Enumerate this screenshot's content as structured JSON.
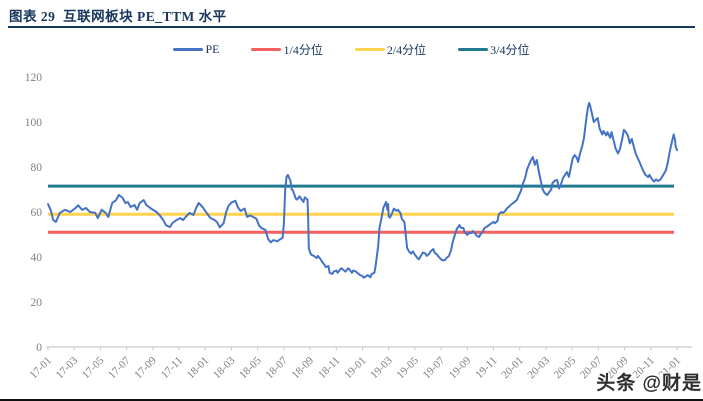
{
  "header": {
    "title": "图表 29  互联网板块 PE_TTM 水平"
  },
  "watermark": "头条 @财是",
  "chart_data": {
    "type": "line",
    "title": "图表 29 互联网板块 PE_TTM 水平",
    "xlabel": "",
    "ylabel": "",
    "ylim": [
      0,
      120
    ],
    "y_ticks": [
      0,
      20,
      40,
      60,
      80,
      100,
      120
    ],
    "x_ticks": [
      "17-01",
      "17-03",
      "17-05",
      "17-07",
      "17-09",
      "17-11",
      "18-01",
      "18-03",
      "18-05",
      "18-07",
      "18-09",
      "18-11",
      "19-01",
      "19-03",
      "19-05",
      "19-07",
      "19-09",
      "19-11",
      "20-01",
      "20-03",
      "20-05",
      "20-07",
      "20-09",
      "20-11",
      "21-01"
    ],
    "x_months_span": 48,
    "grid": "off",
    "legend_position": "top",
    "legend": [
      {
        "name": "PE",
        "color": "#4472C4"
      },
      {
        "name": "1/4分位",
        "color": "#F45F5F"
      },
      {
        "name": "2/4分位",
        "color": "#FFD34F"
      },
      {
        "name": "3/4分位",
        "color": "#20798F"
      }
    ],
    "quartile_values": {
      "q1": 51,
      "q2": 59,
      "q3": 71.5
    },
    "pe_points": [
      [
        0,
        63.5
      ],
      [
        0.2,
        61
      ],
      [
        0.4,
        56.5
      ],
      [
        0.6,
        55.6
      ],
      [
        0.9,
        59.6
      ],
      [
        1.3,
        61
      ],
      [
        1.7,
        60
      ],
      [
        2.1,
        61.8
      ],
      [
        2.3,
        63
      ],
      [
        2.6,
        61
      ],
      [
        2.9,
        61.8
      ],
      [
        3.2,
        60
      ],
      [
        3.6,
        59.6
      ],
      [
        3.8,
        57.3
      ],
      [
        4.1,
        61
      ],
      [
        4.4,
        59.6
      ],
      [
        4.6,
        57.8
      ],
      [
        4.9,
        64
      ],
      [
        5.2,
        65.3
      ],
      [
        5.4,
        67.6
      ],
      [
        5.7,
        66.2
      ],
      [
        5.9,
        64
      ],
      [
        6.1,
        64.4
      ],
      [
        6.3,
        62.2
      ],
      [
        6.6,
        63.1
      ],
      [
        6.8,
        61
      ],
      [
        7.0,
        64
      ],
      [
        7.3,
        65.3
      ],
      [
        7.5,
        63.1
      ],
      [
        7.8,
        61.8
      ],
      [
        8.0,
        61
      ],
      [
        8.2,
        60.4
      ],
      [
        8.5,
        58.7
      ],
      [
        8.8,
        56.4
      ],
      [
        9.0,
        54.2
      ],
      [
        9.3,
        53.3
      ],
      [
        9.5,
        55.1
      ],
      [
        9.8,
        56.4
      ],
      [
        10.1,
        57.3
      ],
      [
        10.3,
        56.4
      ],
      [
        10.5,
        57.8
      ],
      [
        10.8,
        59.6
      ],
      [
        11.1,
        58.7
      ],
      [
        11.3,
        61.8
      ],
      [
        11.5,
        64
      ],
      [
        11.8,
        62.2
      ],
      [
        12.1,
        59.6
      ],
      [
        12.4,
        57.3
      ],
      [
        12.7,
        56.5
      ],
      [
        12.9,
        55.5
      ],
      [
        13.1,
        53.2
      ],
      [
        13.4,
        55
      ],
      [
        13.6,
        60
      ],
      [
        13.8,
        63
      ],
      [
        14.0,
        64.2
      ],
      [
        14.3,
        65
      ],
      [
        14.5,
        62
      ],
      [
        14.7,
        60.5
      ],
      [
        15.0,
        61.5
      ],
      [
        15.2,
        57.8
      ],
      [
        15.4,
        58.5
      ],
      [
        15.6,
        58
      ],
      [
        15.9,
        57
      ],
      [
        16.1,
        54
      ],
      [
        16.3,
        52.8
      ],
      [
        16.6,
        52
      ],
      [
        16.8,
        48
      ],
      [
        17.0,
        46.5
      ],
      [
        17.2,
        47.5
      ],
      [
        17.5,
        47
      ],
      [
        17.7,
        47.8
      ],
      [
        17.9,
        48.5
      ],
      [
        18.0,
        55
      ],
      [
        18.1,
        70
      ],
      [
        18.2,
        75.5
      ],
      [
        18.3,
        76.5
      ],
      [
        18.5,
        74
      ],
      [
        18.6,
        70
      ],
      [
        18.7,
        69.5
      ],
      [
        18.9,
        66
      ],
      [
        19.0,
        65.5
      ],
      [
        19.2,
        67
      ],
      [
        19.3,
        66
      ],
      [
        19.5,
        64.5
      ],
      [
        19.6,
        66.5
      ],
      [
        19.8,
        65.5
      ],
      [
        19.85,
        58
      ],
      [
        19.9,
        44
      ],
      [
        20.0,
        42
      ],
      [
        20.1,
        41
      ],
      [
        20.3,
        40.5
      ],
      [
        20.5,
        39.5
      ],
      [
        20.6,
        40.5
      ],
      [
        20.8,
        39
      ],
      [
        20.9,
        38
      ],
      [
        21.1,
        36.5
      ],
      [
        21.2,
        35.5
      ],
      [
        21.4,
        36
      ],
      [
        21.5,
        33
      ],
      [
        21.7,
        32.5
      ],
      [
        21.8,
        33.5
      ],
      [
        22.0,
        34
      ],
      [
        22.1,
        33
      ],
      [
        22.3,
        34.5
      ],
      [
        22.4,
        35
      ],
      [
        22.6,
        34
      ],
      [
        22.7,
        33.5
      ],
      [
        22.9,
        35
      ],
      [
        23.0,
        34.5
      ],
      [
        23.2,
        33
      ],
      [
        23.3,
        34
      ],
      [
        23.5,
        33.5
      ],
      [
        23.7,
        32.5
      ],
      [
        23.8,
        32
      ],
      [
        24.0,
        31.5
      ],
      [
        24.1,
        30.8
      ],
      [
        24.3,
        31.5
      ],
      [
        24.4,
        32
      ],
      [
        24.6,
        31
      ],
      [
        24.7,
        32.5
      ],
      [
        24.9,
        33
      ],
      [
        25.0,
        36
      ],
      [
        25.2,
        45
      ],
      [
        25.3,
        53
      ],
      [
        25.5,
        59
      ],
      [
        25.6,
        62
      ],
      [
        25.8,
        64.5
      ],
      [
        25.9,
        61
      ],
      [
        25.95,
        63.5
      ],
      [
        26.0,
        58
      ],
      [
        26.1,
        57.5
      ],
      [
        26.3,
        60
      ],
      [
        26.4,
        61.5
      ],
      [
        26.6,
        60.5
      ],
      [
        26.7,
        61
      ],
      [
        26.9,
        59.5
      ],
      [
        27.0,
        57
      ],
      [
        27.2,
        55.5
      ],
      [
        27.3,
        50
      ],
      [
        27.4,
        44
      ],
      [
        27.55,
        42.5
      ],
      [
        27.7,
        41.5
      ],
      [
        27.85,
        42.5
      ],
      [
        28.0,
        41
      ],
      [
        28.2,
        39.5
      ],
      [
        28.3,
        39
      ],
      [
        28.5,
        41
      ],
      [
        28.6,
        42
      ],
      [
        28.8,
        41.5
      ],
      [
        28.9,
        40.5
      ],
      [
        29.1,
        41.5
      ],
      [
        29.2,
        42.5
      ],
      [
        29.4,
        43.5
      ],
      [
        29.5,
        42
      ],
      [
        29.7,
        41
      ],
      [
        29.8,
        40.2
      ],
      [
        30.0,
        39
      ],
      [
        30.1,
        38.5
      ],
      [
        30.3,
        38.7
      ],
      [
        30.4,
        39.5
      ],
      [
        30.6,
        40.5
      ],
      [
        30.75,
        43
      ],
      [
        30.9,
        47
      ],
      [
        31.1,
        50.7
      ],
      [
        31.2,
        52.5
      ],
      [
        31.4,
        54.2
      ],
      [
        31.5,
        53
      ],
      [
        31.7,
        52.9
      ],
      [
        31.8,
        51
      ],
      [
        32.0,
        49.8
      ],
      [
        32.1,
        50.5
      ],
      [
        32.3,
        50.7
      ],
      [
        32.4,
        51.5
      ],
      [
        32.6,
        50.5
      ],
      [
        32.7,
        49.5
      ],
      [
        32.9,
        48.9
      ],
      [
        33.0,
        50
      ],
      [
        33.2,
        51.5
      ],
      [
        33.3,
        52.9
      ],
      [
        33.5,
        53.5
      ],
      [
        33.65,
        54.2
      ],
      [
        33.8,
        54.8
      ],
      [
        34.0,
        55.6
      ],
      [
        34.1,
        55
      ],
      [
        34.3,
        56
      ],
      [
        34.4,
        59
      ],
      [
        34.6,
        60
      ],
      [
        34.7,
        59.6
      ],
      [
        34.9,
        60.5
      ],
      [
        35.0,
        61.5
      ],
      [
        35.2,
        62.5
      ],
      [
        35.3,
        63.1
      ],
      [
        35.5,
        64
      ],
      [
        35.6,
        64.4
      ],
      [
        35.8,
        65.5
      ],
      [
        35.9,
        67
      ],
      [
        36.1,
        69.5
      ],
      [
        36.2,
        72
      ],
      [
        36.4,
        75
      ],
      [
        36.55,
        78.7
      ],
      [
        36.7,
        81
      ],
      [
        36.85,
        83
      ],
      [
        37.0,
        84.4
      ],
      [
        37.15,
        81
      ],
      [
        37.3,
        83.1
      ],
      [
        37.45,
        78
      ],
      [
        37.6,
        74
      ],
      [
        37.75,
        70
      ],
      [
        37.9,
        68.5
      ],
      [
        38.1,
        67.6
      ],
      [
        38.2,
        68.5
      ],
      [
        38.4,
        70
      ],
      [
        38.5,
        72.9
      ],
      [
        38.7,
        74
      ],
      [
        38.85,
        74.2
      ],
      [
        39.0,
        70.5
      ],
      [
        39.1,
        71.5
      ],
      [
        39.3,
        75.1
      ],
      [
        39.45,
        76.5
      ],
      [
        39.6,
        77.8
      ],
      [
        39.75,
        75.6
      ],
      [
        39.9,
        80
      ],
      [
        40.05,
        84
      ],
      [
        40.2,
        85.3
      ],
      [
        40.35,
        84
      ],
      [
        40.45,
        82.2
      ],
      [
        40.6,
        86
      ],
      [
        40.75,
        88.9
      ],
      [
        40.9,
        93
      ],
      [
        41.05,
        100
      ],
      [
        41.2,
        106.5
      ],
      [
        41.3,
        108.5
      ],
      [
        41.35,
        107.6
      ],
      [
        41.5,
        104
      ],
      [
        41.65,
        100
      ],
      [
        41.8,
        101
      ],
      [
        41.95,
        101.8
      ],
      [
        42.1,
        97
      ],
      [
        42.3,
        94.5
      ],
      [
        42.4,
        96
      ],
      [
        42.6,
        94
      ],
      [
        42.7,
        95.5
      ],
      [
        42.9,
        93
      ],
      [
        43.0,
        95.5
      ],
      [
        43.2,
        91
      ],
      [
        43.3,
        88.5
      ],
      [
        43.5,
        86
      ],
      [
        43.65,
        88
      ],
      [
        43.8,
        92
      ],
      [
        43.95,
        96.5
      ],
      [
        44.1,
        95.5
      ],
      [
        44.25,
        94
      ],
      [
        44.4,
        90.5
      ],
      [
        44.55,
        92.5
      ],
      [
        44.7,
        89
      ],
      [
        44.85,
        86
      ],
      [
        45.0,
        84
      ],
      [
        45.15,
        82
      ],
      [
        45.3,
        80
      ],
      [
        45.45,
        78
      ],
      [
        45.6,
        76.5
      ],
      [
        45.8,
        75.5
      ],
      [
        45.9,
        76.5
      ],
      [
        46.1,
        74.5
      ],
      [
        46.25,
        73.5
      ],
      [
        46.4,
        74.5
      ],
      [
        46.55,
        73.8
      ],
      [
        46.7,
        74.2
      ],
      [
        46.85,
        75.5
      ],
      [
        47.0,
        77
      ],
      [
        47.15,
        78.5
      ],
      [
        47.3,
        82
      ],
      [
        47.45,
        87
      ],
      [
        47.6,
        91
      ],
      [
        47.75,
        94.5
      ],
      [
        47.85,
        92
      ],
      [
        47.9,
        89
      ],
      [
        48.0,
        87.5
      ]
    ],
    "axis_color": "#c9c9c9",
    "tick_label_color": "#7f7f7f"
  }
}
